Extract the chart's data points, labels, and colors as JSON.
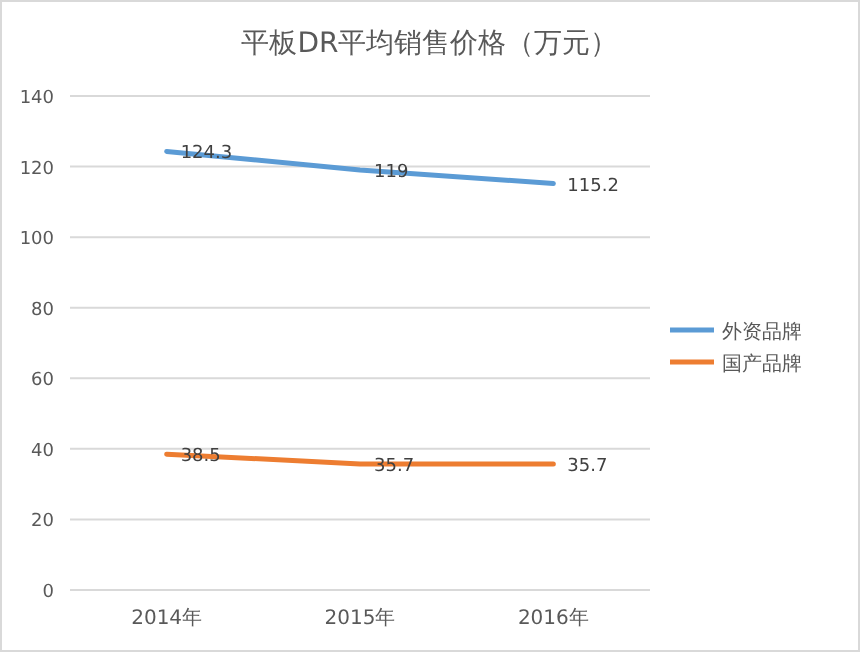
{
  "chart_data": {
    "type": "line",
    "title": "平板DR平均销售价格（万元）",
    "categories": [
      "2014年",
      "2015年",
      "2016年"
    ],
    "series": [
      {
        "name": "外资品牌",
        "color": "#5b9bd5",
        "values": [
          124.3,
          119,
          115.2
        ]
      },
      {
        "name": "国产品牌",
        "color": "#ed7d31",
        "values": [
          38.5,
          35.7,
          35.7
        ]
      }
    ],
    "ylim": [
      0,
      140
    ],
    "yticks": [
      0,
      20,
      40,
      60,
      80,
      100,
      120,
      140
    ],
    "grid": "y",
    "legend": "right",
    "data_labels": true,
    "marker": "none",
    "line_style": "solid"
  }
}
